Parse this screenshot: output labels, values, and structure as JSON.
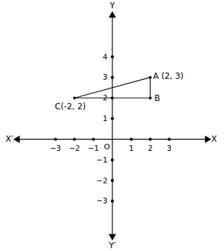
{
  "chart_data": {
    "type": "line",
    "x": [
      2,
      2,
      -2
    ],
    "y": [
      3,
      2,
      2
    ],
    "point_labels": [
      "A (2, 3)",
      "B",
      "C(-2, 2)"
    ],
    "axis_labels": {
      "x": "X",
      "x_negative": "X′",
      "y": "Y",
      "y_negative": "Y′",
      "origin": "O"
    },
    "xlim": [
      -5,
      5
    ],
    "ylim": [
      -4.7,
      6
    ],
    "xticks": [
      -3,
      -2,
      -1,
      1,
      2,
      3
    ],
    "yticks": [
      -3,
      -2,
      -1,
      1,
      2,
      3,
      4
    ],
    "color": "#000000",
    "marker": "dot",
    "grid": false
  }
}
